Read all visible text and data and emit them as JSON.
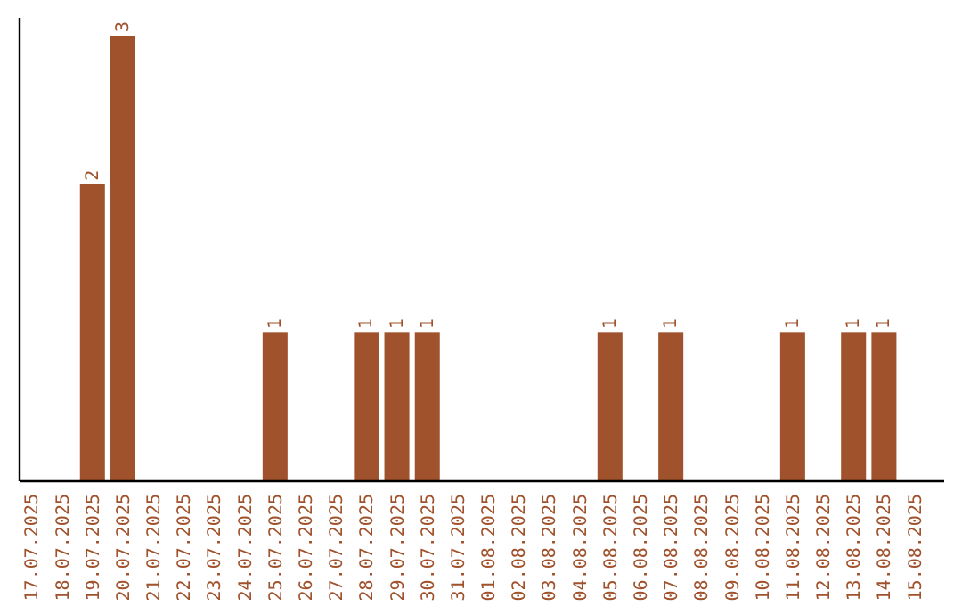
{
  "chart_data": {
    "type": "bar",
    "categories": [
      "17.07.2025",
      "18.07.2025",
      "19.07.2025",
      "20.07.2025",
      "21.07.2025",
      "22.07.2025",
      "23.07.2025",
      "24.07.2025",
      "25.07.2025",
      "26.07.2025",
      "27.07.2025",
      "28.07.2025",
      "29.07.2025",
      "30.07.2025",
      "31.07.2025",
      "01.08.2025",
      "02.08.2025",
      "03.08.2025",
      "04.08.2025",
      "05.08.2025",
      "06.08.2025",
      "07.08.2025",
      "08.08.2025",
      "09.08.2025",
      "10.08.2025",
      "11.08.2025",
      "12.08.2025",
      "13.08.2025",
      "14.08.2025",
      "15.08.2025"
    ],
    "values": [
      0,
      0,
      2,
      3,
      0,
      0,
      0,
      0,
      1,
      0,
      0,
      1,
      1,
      1,
      0,
      0,
      0,
      0,
      0,
      1,
      0,
      1,
      0,
      0,
      0,
      1,
      0,
      1,
      1,
      0
    ],
    "value_labels": [
      null,
      null,
      "2",
      "3",
      null,
      null,
      null,
      null,
      "1",
      null,
      null,
      "1",
      "1",
      "1",
      null,
      null,
      null,
      null,
      null,
      "1",
      null,
      "1",
      null,
      null,
      null,
      "1",
      null,
      "1",
      "1",
      null
    ],
    "color": "#a0522d"
  }
}
